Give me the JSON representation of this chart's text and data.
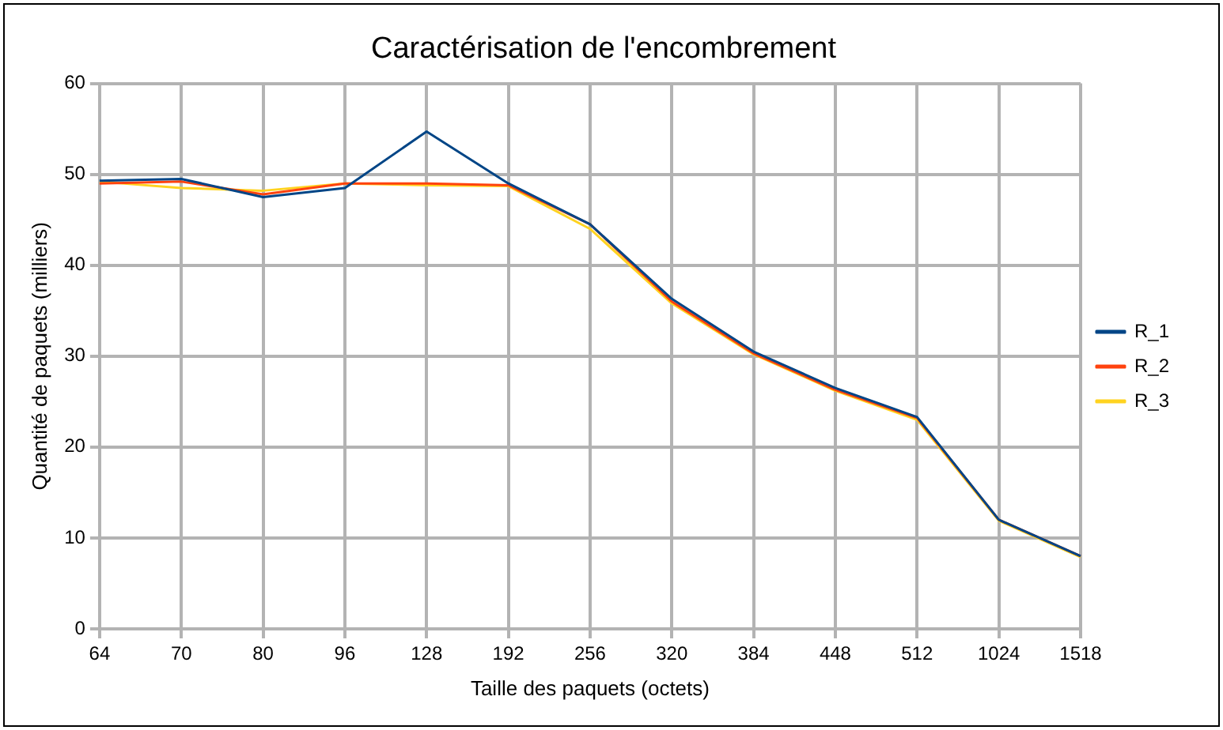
{
  "chart_data": {
    "type": "line",
    "title": "Caractérisation de l'encombrement",
    "xlabel": "Taille des paquets (octets)",
    "ylabel": "Quantité de paquets (milliers)",
    "categories": [
      "64",
      "70",
      "80",
      "96",
      "128",
      "192",
      "256",
      "320",
      "384",
      "448",
      "512",
      "1024",
      "1518"
    ],
    "series": [
      {
        "name": "R_1",
        "color": "#004586",
        "values": [
          49.3,
          49.5,
          47.5,
          48.5,
          54.7,
          49,
          44.5,
          36.3,
          30.5,
          26.5,
          23.3,
          12,
          8
        ]
      },
      {
        "name": "R_2",
        "color": "#ff420e",
        "values": [
          49,
          49.2,
          47.8,
          49,
          49,
          48.8,
          44.5,
          36,
          30.3,
          26.3,
          23.2,
          12,
          8
        ]
      },
      {
        "name": "R_3",
        "color": "#ffd320",
        "values": [
          49.2,
          48.5,
          48.2,
          49,
          48.8,
          48.7,
          44,
          35.8,
          30.2,
          26.2,
          23,
          11.9,
          7.9
        ]
      }
    ],
    "ylim": [
      0,
      60
    ],
    "yticks": [
      0,
      10,
      20,
      30,
      40,
      50,
      60
    ],
    "grid": true,
    "legend": "right",
    "marker": "none",
    "line_style": "solid"
  }
}
